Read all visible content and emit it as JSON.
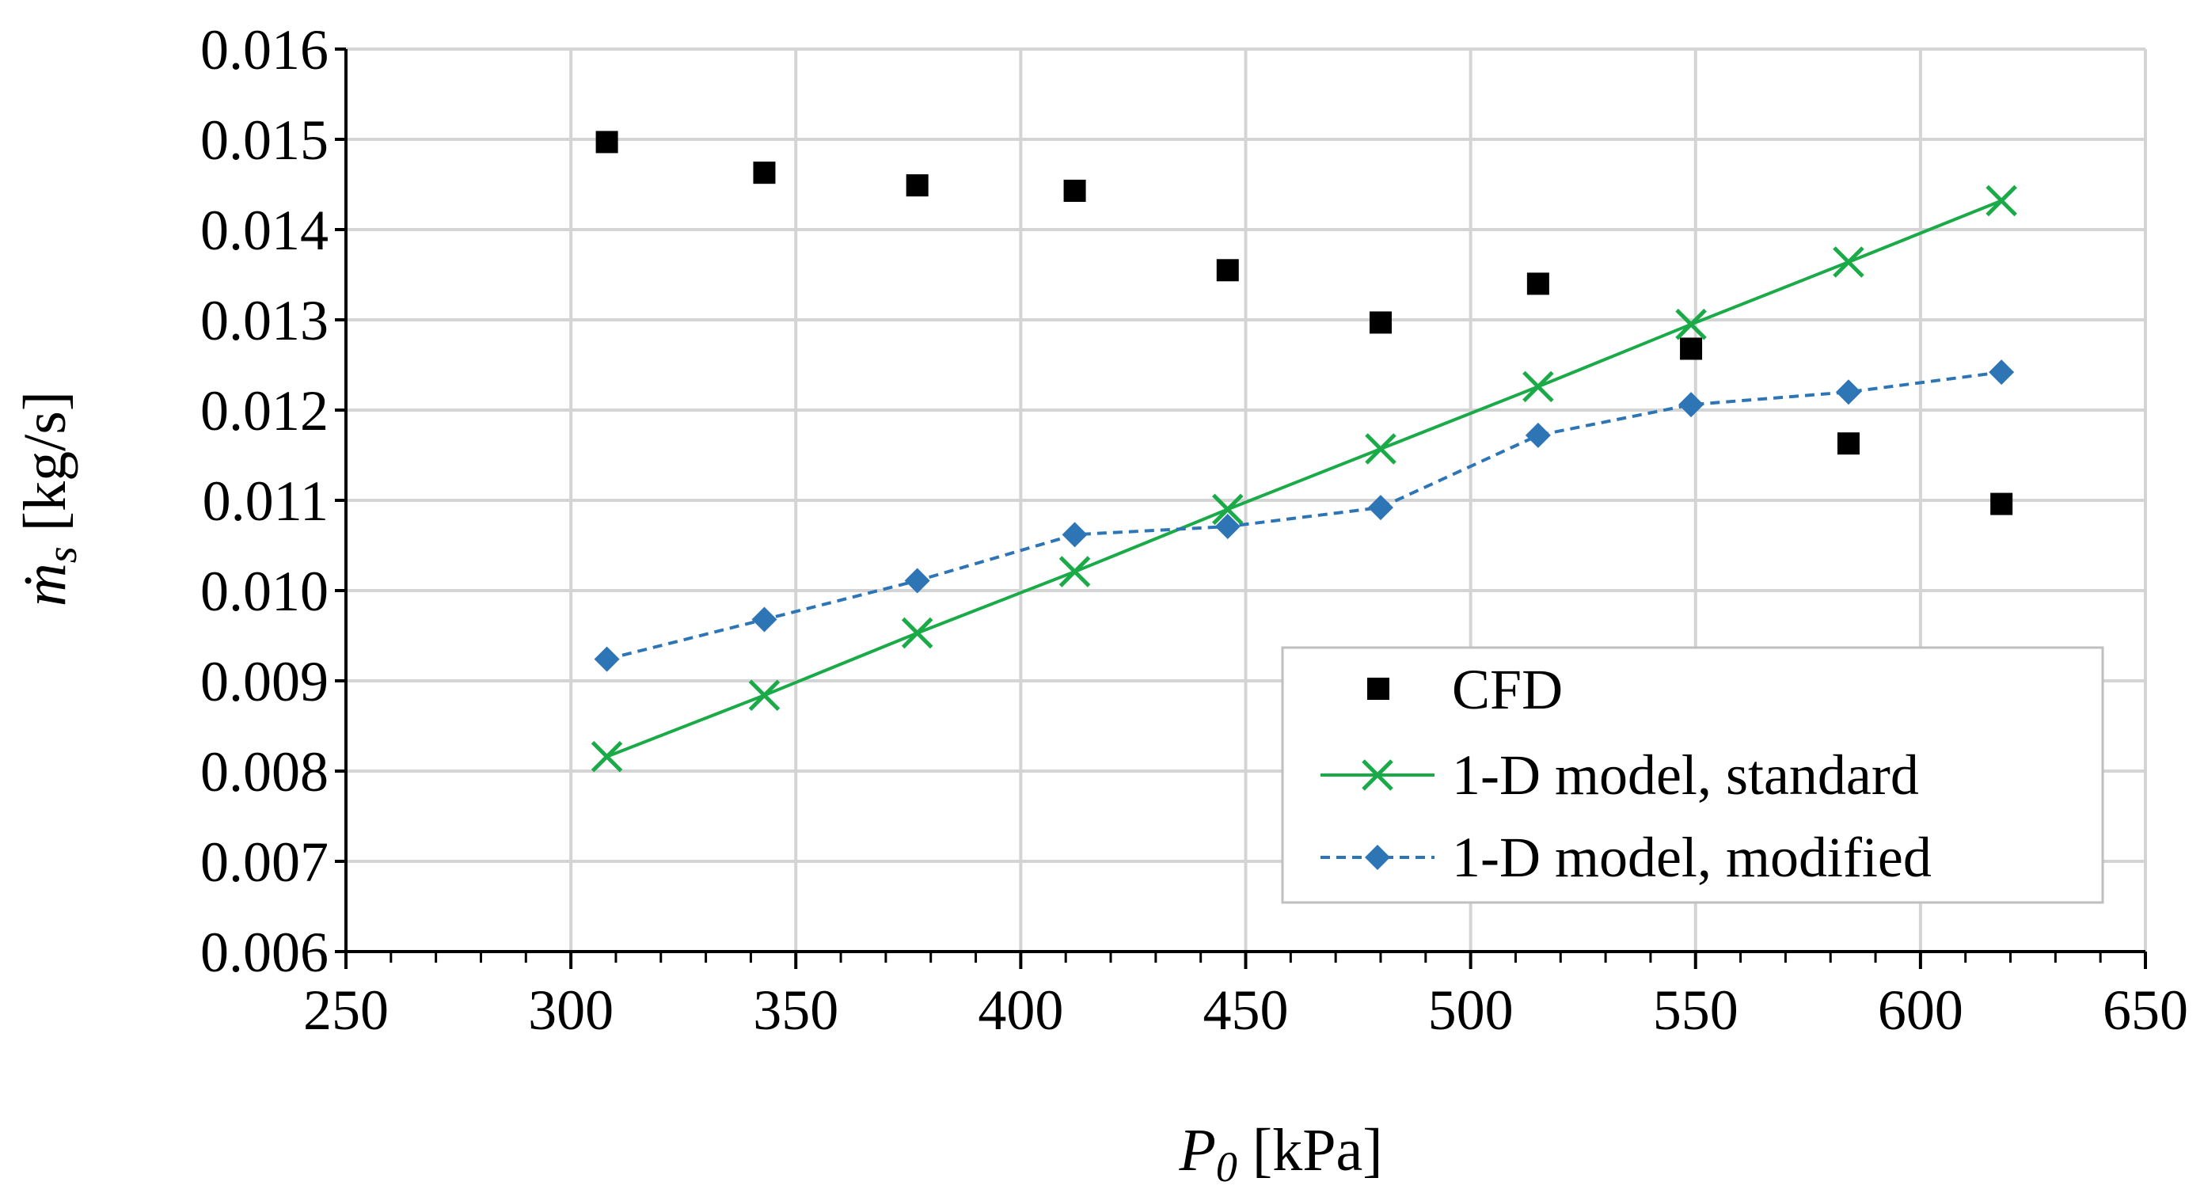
{
  "chart_data": {
    "type": "scatter",
    "title": "",
    "xlabel_main": "P",
    "xlabel_sub": "0",
    "xlabel_unit": " [kPa]",
    "ylabel_main": "ṁ",
    "ylabel_sub": "s",
    "ylabel_unit": " [kg/s]",
    "xlim": [
      250,
      650
    ],
    "ylim": [
      0.006,
      0.016
    ],
    "x_ticks": [
      250,
      300,
      350,
      400,
      450,
      500,
      550,
      600,
      650
    ],
    "x_tick_labels": [
      "250",
      "300",
      "350",
      "400",
      "450",
      "500",
      "550",
      "600",
      "650"
    ],
    "y_ticks": [
      0.006,
      0.007,
      0.008,
      0.009,
      0.01,
      0.011,
      0.012,
      0.013,
      0.014,
      0.015,
      0.016
    ],
    "y_tick_labels": [
      "0.006",
      "0.007",
      "0.008",
      "0.009",
      "0.010",
      "0.011",
      "0.012",
      "0.013",
      "0.014",
      "0.015",
      "0.016"
    ],
    "grid": true,
    "legend_position": "lower-right",
    "series": [
      {
        "name": "CFD",
        "marker": "square",
        "line": "none",
        "color": "#000000",
        "x": [
          308,
          343,
          377,
          412,
          446,
          480,
          515,
          549,
          584,
          618
        ],
        "values": [
          0.01497,
          0.01463,
          0.01449,
          0.01443,
          0.01355,
          0.01297,
          0.0134,
          0.01268,
          0.01163,
          0.01096
        ]
      },
      {
        "name": "1-D model, standard",
        "marker": "x",
        "line": "solid",
        "color": "#1aab48",
        "x": [
          308,
          343,
          377,
          412,
          446,
          480,
          515,
          549,
          584,
          618
        ],
        "values": [
          0.00816,
          0.00884,
          0.00953,
          0.01021,
          0.0109,
          0.01157,
          0.01226,
          0.01295,
          0.01364,
          0.01432
        ]
      },
      {
        "name": "1-D model, modified",
        "marker": "diamond",
        "line": "dashed",
        "color": "#2e75b6",
        "x": [
          308,
          343,
          377,
          412,
          446,
          480,
          515,
          549,
          584,
          618
        ],
        "values": [
          0.00924,
          0.00968,
          0.01011,
          0.01062,
          0.01071,
          0.01092,
          0.01172,
          0.01206,
          0.0122,
          0.01242
        ]
      }
    ]
  }
}
